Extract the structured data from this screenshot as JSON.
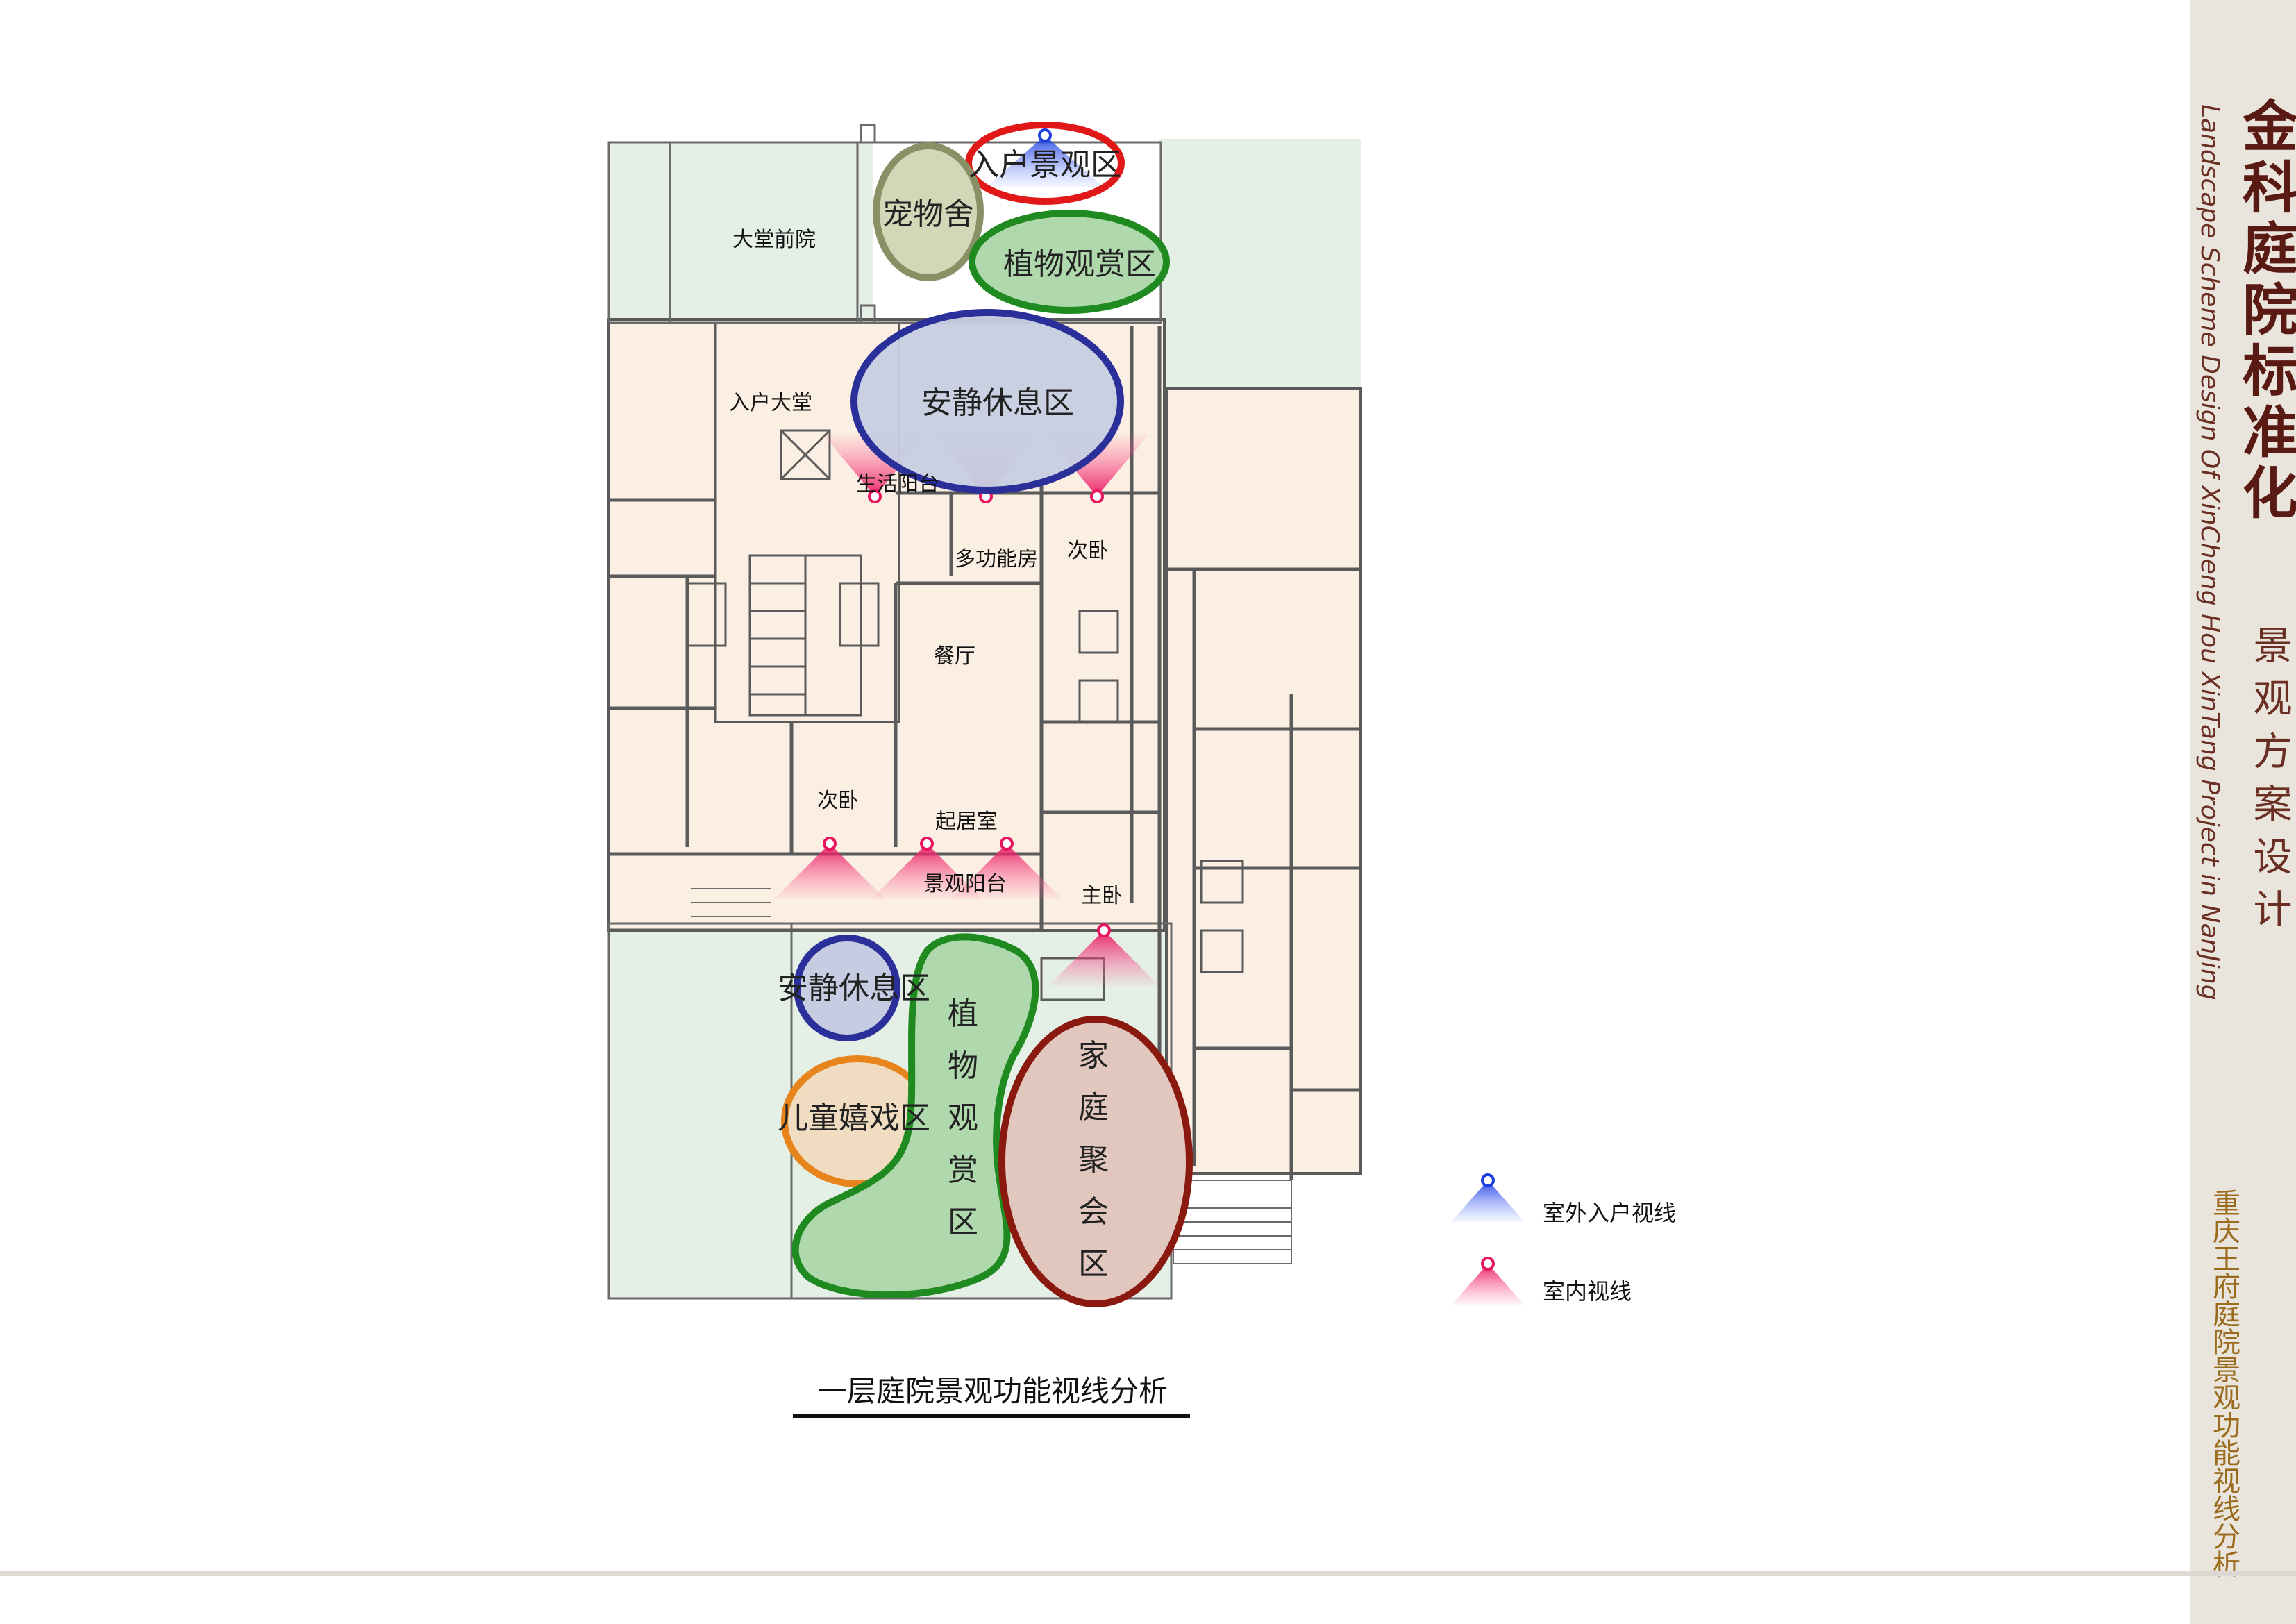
{
  "brand": "金科庭院标准化",
  "subtitle_en": "Landscape Scheme Design Of XinCheng Hou XinTang Project in NanJing",
  "subtitle_cn": "景观方案设计",
  "page_title": "重庆王府庭院景观功能视线分析",
  "caption": "一层庭院景观功能视线分析",
  "rooms": {
    "front_court": "大堂前院",
    "lobby": "入户大堂",
    "balcony": "生活阳台",
    "multi_room": "多功能房",
    "bedroom_a": "次卧",
    "dining": "餐厅",
    "bedroom_b": "次卧",
    "living": "起居室",
    "view_balcony": "景观阳台",
    "master": "主卧"
  },
  "zones": {
    "entry_view": "入户景观区",
    "pet": "宠物舍",
    "plant_top": "植物观赏区",
    "quiet_top": "安静休息区",
    "quiet_bottom": "安静休息区",
    "kids": "儿童嬉戏区",
    "plant_vertical": [
      "植",
      "物",
      "观",
      "赏",
      "区"
    ],
    "family_vertical": [
      "家",
      "庭",
      "聚",
      "会",
      "区"
    ]
  },
  "legend": [
    {
      "label": "室外入户视线",
      "color": "#3a5fe0"
    },
    {
      "label": "室内视线",
      "color": "#ee2266"
    }
  ],
  "colors": {
    "wall": "#5a5a5a",
    "floor": "#fbeee2",
    "green": "#e4efe6",
    "accent_dark": "#5a1a14"
  }
}
